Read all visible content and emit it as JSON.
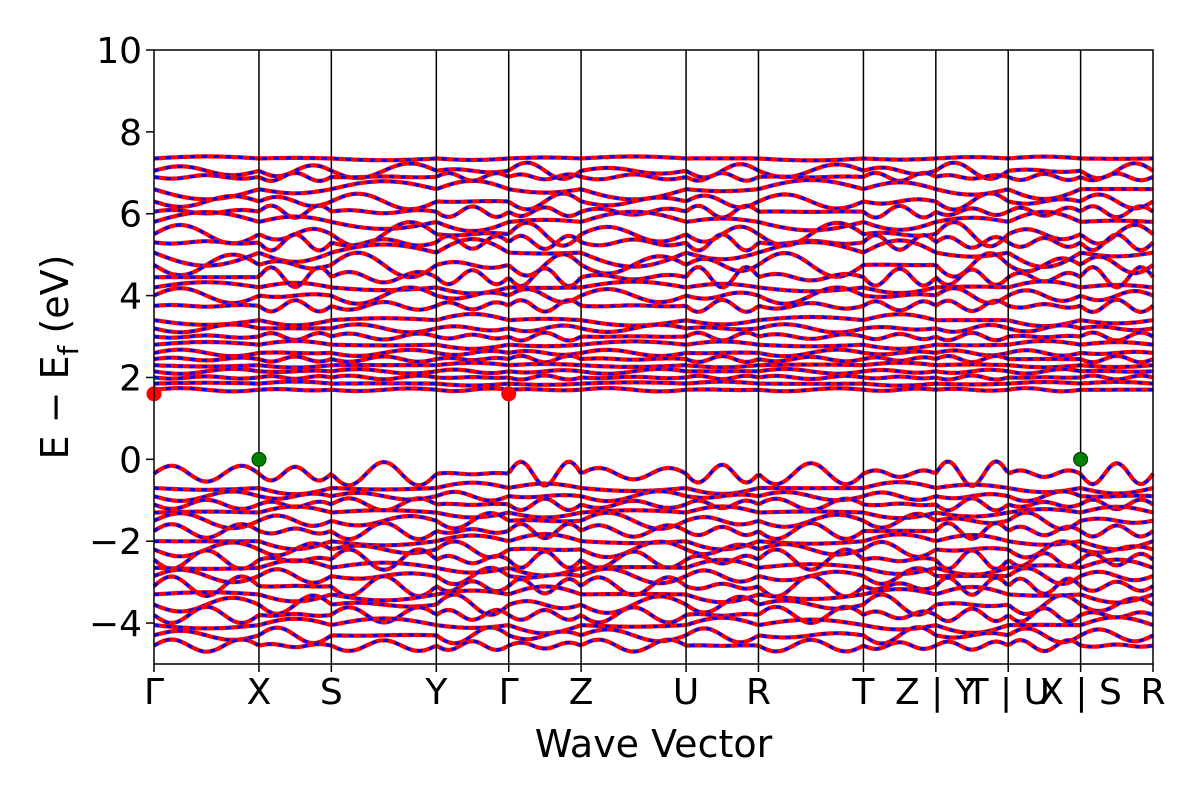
{
  "chart_data": {
    "type": "line",
    "xlabel": "Wave Vector",
    "ylabel": "E − E_f (eV)",
    "ylim": [
      -5,
      10
    ],
    "y_ticks": [
      -4,
      -2,
      0,
      2,
      4,
      6,
      8,
      10
    ],
    "x_ticks": [
      {
        "label": "Γ",
        "position": 0
      },
      {
        "label": "X",
        "position": 1.45
      },
      {
        "label": "S",
        "position": 2.45
      },
      {
        "label": "Y",
        "position": 3.9
      },
      {
        "label": "Γ",
        "position": 4.9
      },
      {
        "label": "Z",
        "position": 5.9
      },
      {
        "label": "U",
        "position": 7.35
      },
      {
        "label": "R",
        "position": 8.35
      },
      {
        "label": "T",
        "position": 9.8
      },
      {
        "label": "Z | Y",
        "position": 10.8
      },
      {
        "label": "T | U",
        "position": 11.8
      },
      {
        "label": "X | S",
        "position": 12.8
      },
      {
        "label": "R",
        "position": 13.8
      }
    ],
    "xlim": [
      0,
      13.8
    ],
    "band_colors": {
      "spin_up": "#ff0000",
      "spin_down": "#0000ff"
    },
    "vbm_cbm_markers": [
      {
        "x": 1.45,
        "y": 0.0,
        "kind": "VBM",
        "color": "#008000"
      },
      {
        "x": 12.8,
        "y": 0.0,
        "kind": "VBM",
        "color": "#008000"
      },
      {
        "x": 0.0,
        "y": 1.6,
        "kind": "CBM",
        "color": "#ff0000"
      },
      {
        "x": 4.9,
        "y": 1.6,
        "kind": "CBM",
        "color": "#ff0000"
      }
    ],
    "bands": [
      {
        "base": 7.35,
        "amp": 0.05
      },
      {
        "base": 7.05,
        "amp": 0.2
      },
      {
        "base": 6.9,
        "amp": 0.1
      },
      {
        "base": 6.6,
        "amp": 0.25
      },
      {
        "base": 6.3,
        "amp": 0.2
      },
      {
        "base": 6.05,
        "amp": 0.15
      },
      {
        "base": 5.8,
        "amp": 0.25
      },
      {
        "base": 5.5,
        "amp": 0.3
      },
      {
        "base": 5.3,
        "amp": 0.2
      },
      {
        "base": 5.05,
        "amp": 0.35
      },
      {
        "base": 4.75,
        "amp": 0.3
      },
      {
        "base": 4.45,
        "amp": 0.25
      },
      {
        "base": 4.2,
        "amp": 0.15
      },
      {
        "base": 4.0,
        "amp": 0.2
      },
      {
        "base": 3.75,
        "amp": 0.15
      },
      {
        "base": 3.4,
        "amp": 0.15
      },
      {
        "base": 3.2,
        "amp": 0.1
      },
      {
        "base": 3.0,
        "amp": 0.1
      },
      {
        "base": 2.8,
        "amp": 0.1
      },
      {
        "base": 2.6,
        "amp": 0.08
      },
      {
        "base": 2.45,
        "amp": 0.08
      },
      {
        "base": 2.3,
        "amp": 0.06
      },
      {
        "base": 2.15,
        "amp": 0.06
      },
      {
        "base": 2.0,
        "amp": 0.05
      },
      {
        "base": 1.85,
        "amp": 0.05
      },
      {
        "base": 1.7,
        "amp": 0.04
      },
      {
        "base": -0.35,
        "amp": 0.3
      },
      {
        "base": -0.7,
        "amp": 0.15
      },
      {
        "base": -0.9,
        "amp": 0.12
      },
      {
        "base": -1.1,
        "amp": 0.15
      },
      {
        "base": -1.3,
        "amp": 0.15
      },
      {
        "base": -1.5,
        "amp": 0.2
      },
      {
        "base": -1.75,
        "amp": 0.2
      },
      {
        "base": -2.0,
        "amp": 0.2
      },
      {
        "base": -2.2,
        "amp": 0.2
      },
      {
        "base": -2.45,
        "amp": 0.25
      },
      {
        "base": -2.65,
        "amp": 0.2
      },
      {
        "base": -2.85,
        "amp": 0.2
      },
      {
        "base": -3.1,
        "amp": 0.25
      },
      {
        "base": -3.3,
        "amp": 0.2
      },
      {
        "base": -3.55,
        "amp": 0.25
      },
      {
        "base": -3.8,
        "amp": 0.2
      },
      {
        "base": -4.05,
        "amp": 0.2
      },
      {
        "base": -4.3,
        "amp": 0.2
      },
      {
        "base": -4.55,
        "amp": 0.15
      }
    ]
  }
}
